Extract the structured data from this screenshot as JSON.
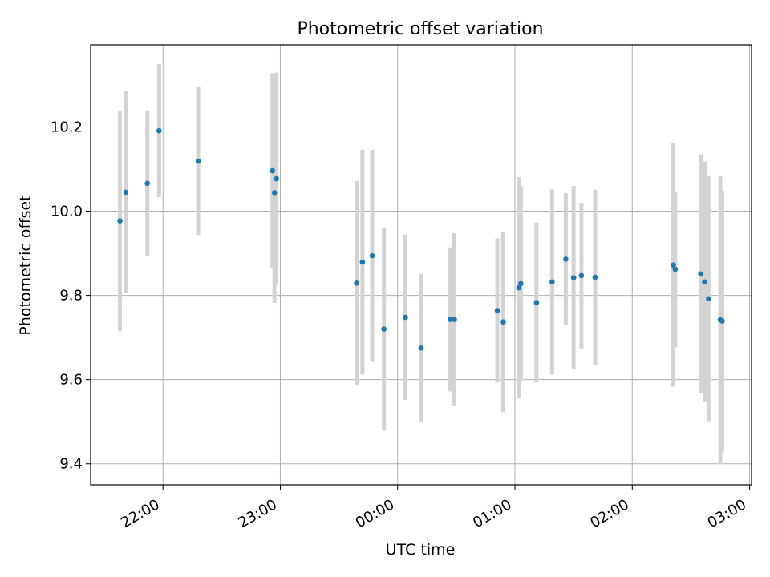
{
  "chart_data": {
    "type": "scatter",
    "title": "Photometric offset variation",
    "xlabel": "UTC time",
    "ylabel": "Photometric offset",
    "x_range": [
      "21:23",
      "03:01"
    ],
    "ylim": [
      9.35,
      10.395
    ],
    "x_ticks": [
      "22:00",
      "23:00",
      "00:00",
      "01:00",
      "02:00",
      "03:00"
    ],
    "y_ticks": [
      "9.4",
      "9.6",
      "9.8",
      "10.0",
      "10.2"
    ],
    "grid": true,
    "error_bar_color": "#d3d3d3",
    "marker_color": "#1f77b4",
    "points": [
      {
        "t": "21:38",
        "y": 9.977,
        "err": 0.262
      },
      {
        "t": "21:41",
        "y": 10.045,
        "err": 0.24
      },
      {
        "t": "21:52",
        "y": 10.066,
        "err": 0.172
      },
      {
        "t": "21:58",
        "y": 10.191,
        "err": 0.158
      },
      {
        "t": "22:18",
        "y": 10.119,
        "err": 0.176
      },
      {
        "t": "22:56",
        "y": 10.096,
        "err": 0.232
      },
      {
        "t": "22:57",
        "y": 10.044,
        "err": 0.262
      },
      {
        "t": "22:58",
        "y": 10.077,
        "err": 0.252
      },
      {
        "t": "23:39",
        "y": 9.829,
        "err": 0.243
      },
      {
        "t": "23:42",
        "y": 9.879,
        "err": 0.267
      },
      {
        "t": "23:47",
        "y": 9.894,
        "err": 0.252
      },
      {
        "t": "23:53",
        "y": 9.72,
        "err": 0.241
      },
      {
        "t": "00:04",
        "y": 9.748,
        "err": 0.196
      },
      {
        "t": "00:12",
        "y": 9.675,
        "err": 0.176
      },
      {
        "t": "00:27",
        "y": 9.743,
        "err": 0.171
      },
      {
        "t": "00:29",
        "y": 9.743,
        "err": 0.205
      },
      {
        "t": "00:51",
        "y": 9.764,
        "err": 0.171
      },
      {
        "t": "00:54",
        "y": 9.737,
        "err": 0.214
      },
      {
        "t": "01:02",
        "y": 9.818,
        "err": 0.263
      },
      {
        "t": "01:03",
        "y": 9.828,
        "err": 0.232
      },
      {
        "t": "01:11",
        "y": 9.783,
        "err": 0.19
      },
      {
        "t": "01:19",
        "y": 9.832,
        "err": 0.22
      },
      {
        "t": "01:26",
        "y": 9.886,
        "err": 0.157
      },
      {
        "t": "01:30",
        "y": 9.842,
        "err": 0.218
      },
      {
        "t": "01:34",
        "y": 9.847,
        "err": 0.173
      },
      {
        "t": "01:41",
        "y": 9.843,
        "err": 0.208
      },
      {
        "t": "02:21",
        "y": 9.872,
        "err": 0.289
      },
      {
        "t": "02:22",
        "y": 9.862,
        "err": 0.185
      },
      {
        "t": "02:35",
        "y": 9.851,
        "err": 0.284
      },
      {
        "t": "02:37",
        "y": 9.832,
        "err": 0.286
      },
      {
        "t": "02:39",
        "y": 9.792,
        "err": 0.291
      },
      {
        "t": "02:45",
        "y": 9.742,
        "err": 0.343
      },
      {
        "t": "02:46",
        "y": 9.739,
        "err": 0.31
      }
    ]
  }
}
